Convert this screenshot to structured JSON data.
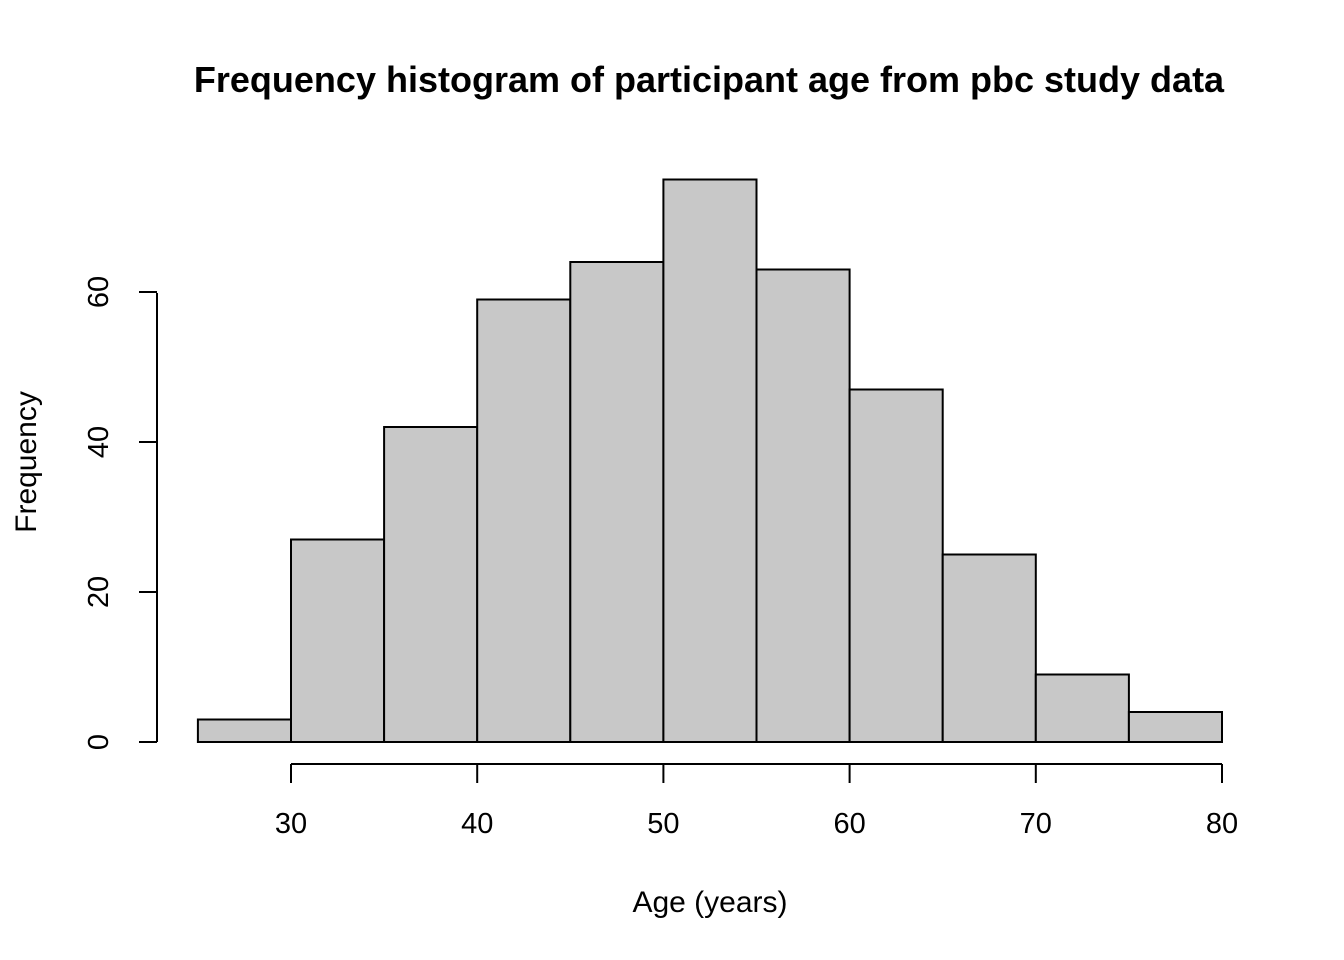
{
  "chart_data": {
    "type": "bar",
    "title": "Frequency histogram of participant age from pbc study data",
    "xlabel": "Age (years)",
    "ylabel": "Frequency",
    "bins": [
      [
        25,
        30
      ],
      [
        30,
        35
      ],
      [
        35,
        40
      ],
      [
        40,
        45
      ],
      [
        45,
        50
      ],
      [
        50,
        55
      ],
      [
        55,
        60
      ],
      [
        60,
        65
      ],
      [
        65,
        70
      ],
      [
        70,
        75
      ],
      [
        75,
        80
      ]
    ],
    "values": [
      3,
      27,
      42,
      59,
      64,
      75,
      63,
      47,
      25,
      9,
      4
    ],
    "xlim": [
      25,
      80
    ],
    "ylim": [
      0,
      75
    ],
    "xticks": [
      30,
      40,
      50,
      60,
      70,
      80
    ],
    "yticks": [
      0,
      20,
      40,
      60
    ],
    "bar_color": "#c8c8c8",
    "grid": false,
    "legend": "none"
  }
}
